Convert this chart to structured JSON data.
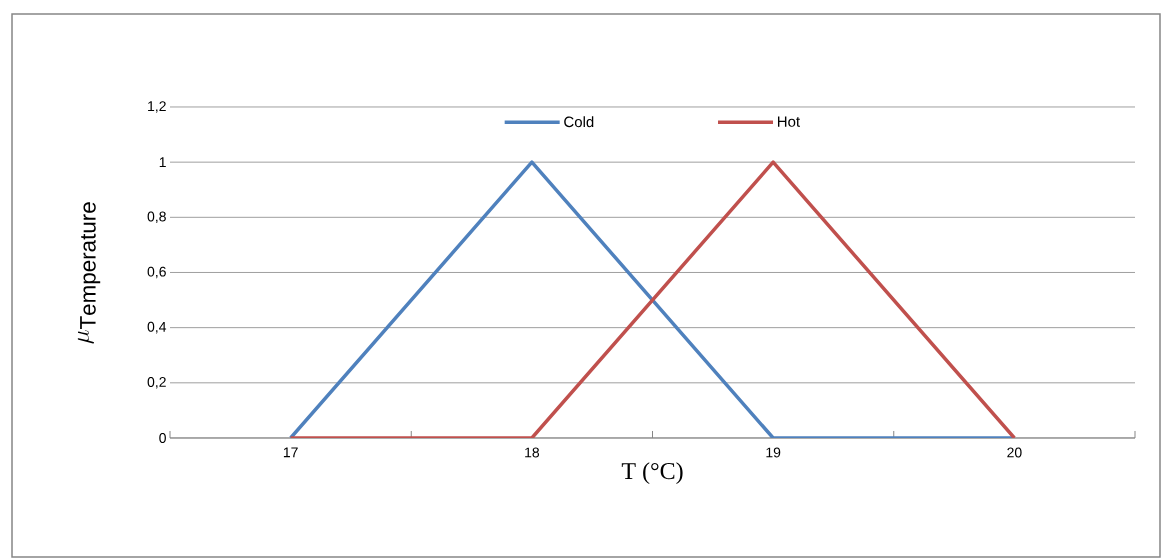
{
  "chart_data": {
    "type": "line",
    "xlabel": "T (°C)",
    "ylabel": "\\mu_{\\mathrm{Temperature}}",
    "categories": [
      "17",
      "18",
      "19",
      "20"
    ],
    "series": [
      {
        "name": "Cold",
        "color": "#4f81bd",
        "values": [
          0,
          1,
          0,
          0
        ]
      },
      {
        "name": "Hot",
        "color": "#c0504d",
        "values": [
          0,
          0,
          1,
          0
        ]
      }
    ],
    "ylim": [
      0,
      1.2
    ],
    "yticks": [
      0,
      {
        "value": 0.2,
        "label": "0,2"
      },
      {
        "value": 0.4,
        "label": "0,4"
      },
      {
        "value": 0.6,
        "label": "0,6"
      },
      {
        "value": 0.8,
        "label": "0,8"
      },
      1,
      {
        "value": 1.2,
        "label": "1,2"
      }
    ],
    "grid": "y",
    "legend": "top",
    "marker": "none",
    "line_style": "solid"
  }
}
